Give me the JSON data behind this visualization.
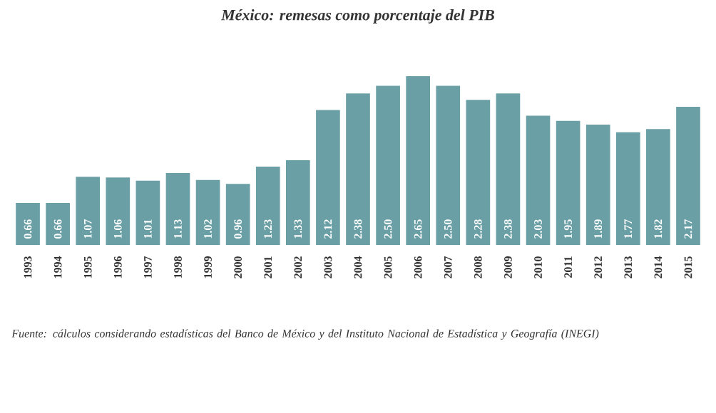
{
  "chart_data": {
    "type": "bar",
    "title": "México: remesas como porcentaje del PIB",
    "categories": [
      "1993",
      "1994",
      "1995",
      "1996",
      "1997",
      "1998",
      "1999",
      "2000",
      "2001",
      "2002",
      "2003",
      "2004",
      "2005",
      "2006",
      "2007",
      "2008",
      "2009",
      "2010",
      "2011",
      "2012",
      "2013",
      "2014",
      "2015"
    ],
    "values": [
      0.66,
      0.66,
      1.07,
      1.06,
      1.01,
      1.13,
      1.02,
      0.96,
      1.23,
      1.33,
      2.12,
      2.38,
      2.5,
      2.65,
      2.5,
      2.28,
      2.38,
      2.03,
      1.95,
      1.89,
      1.77,
      1.82,
      2.17
    ],
    "color": "#6a9fa6",
    "value_labels": [
      "0.66",
      "0.66",
      "1.07",
      "1.06",
      "1.01",
      "1.13",
      "1.02",
      "0.96",
      "1.23",
      "1.33",
      "2.12",
      "2.38",
      "2.50",
      "2.65",
      "2.50",
      "2.28",
      "2.38",
      "2.03",
      "1.95",
      "1.89",
      "1.77",
      "1.82",
      "2.17"
    ],
    "annotations": [
      "Fuente: cálculos considerando estadísticas del Banco de México y del Instituto Nacional de Estadística y Geografía (INEGI)"
    ]
  }
}
